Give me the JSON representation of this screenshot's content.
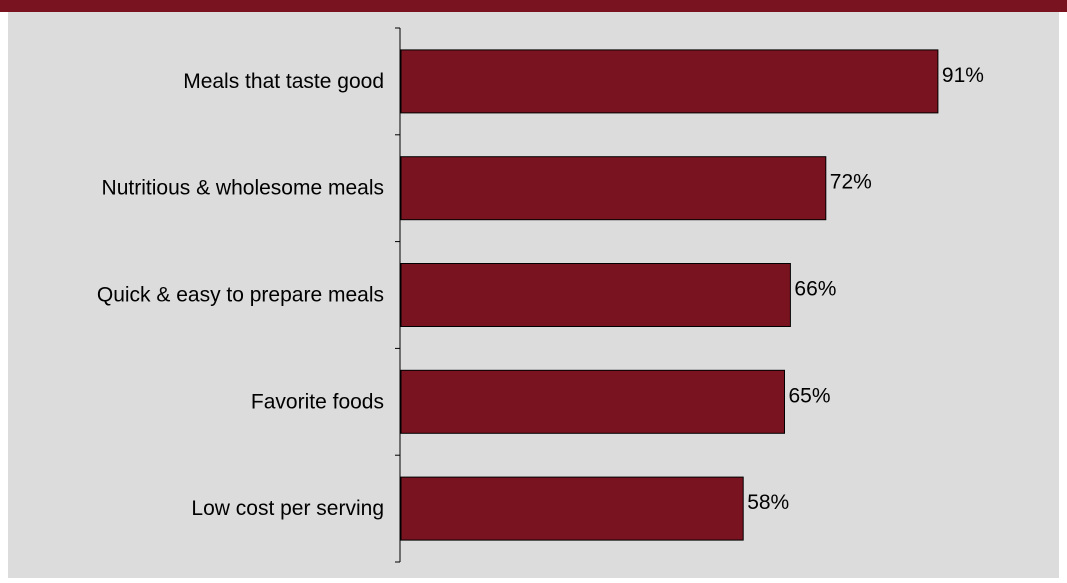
{
  "chart_data": {
    "type": "bar",
    "orientation": "horizontal",
    "categories": [
      "Meals that taste good",
      "Nutritious & wholesome meals",
      "Quick & easy to prepare meals",
      "Favorite foods",
      "Low cost per serving"
    ],
    "values": [
      91,
      72,
      66,
      65,
      58
    ],
    "value_labels": [
      "91%",
      "72%",
      "66%",
      "65%",
      "58%"
    ],
    "unit": "%",
    "xlim": [
      0,
      100
    ],
    "grid": false,
    "legend": "none"
  },
  "colors": {
    "bar": "#7a1320",
    "background": "#dcdcdc",
    "header_band": "#7a1320"
  }
}
